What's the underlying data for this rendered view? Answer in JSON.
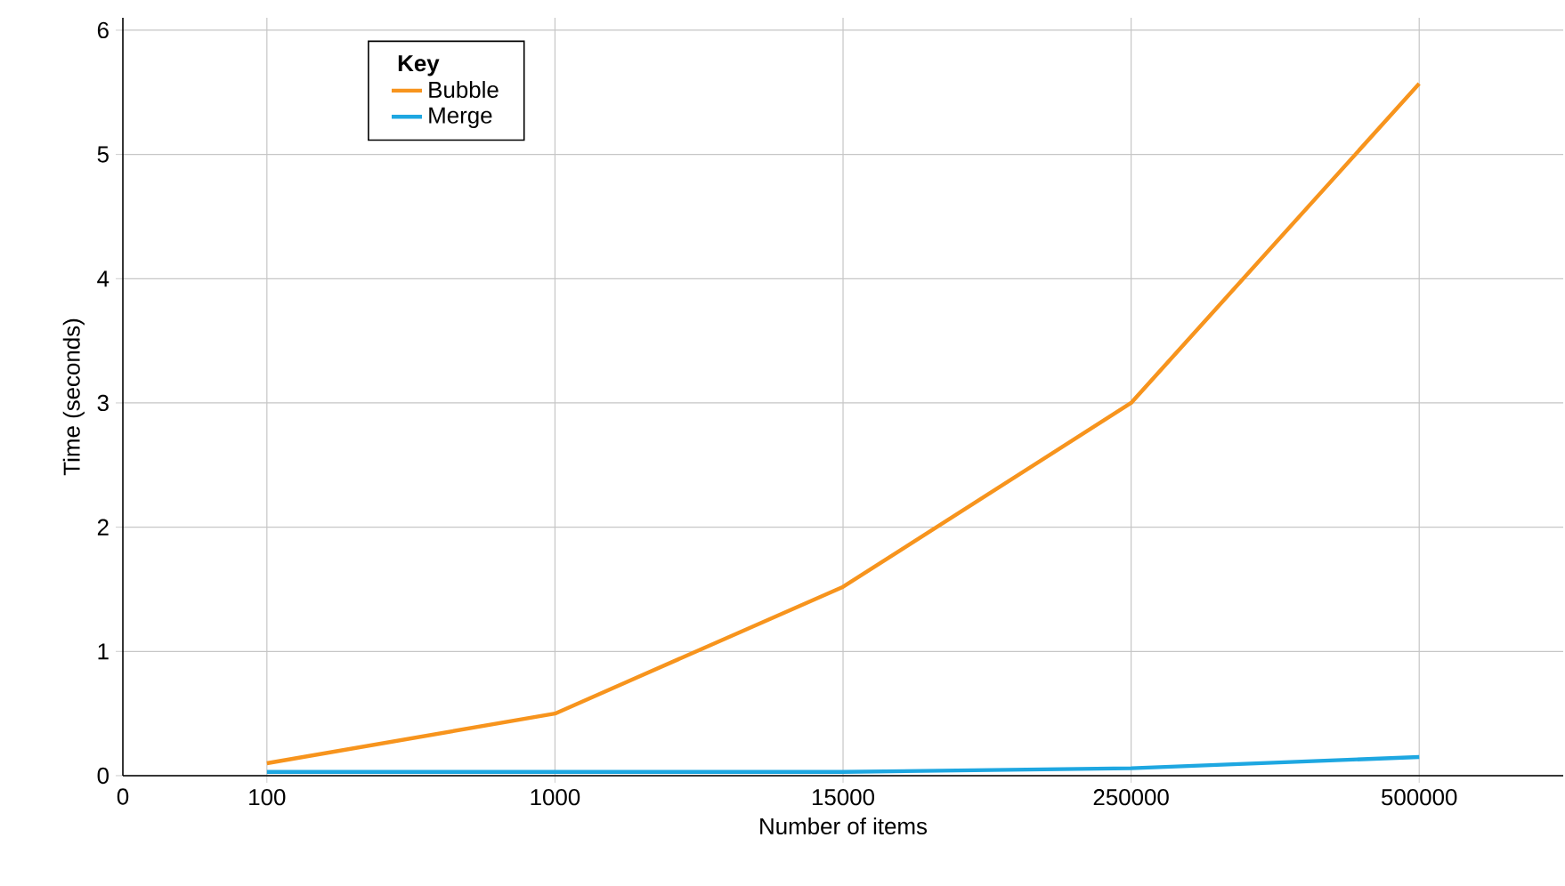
{
  "chart_data": {
    "type": "line",
    "xlabel": "Number of items",
    "ylabel": "Time (seconds)",
    "legend_title": "Key",
    "categories": [
      "100",
      "1000",
      "15000",
      "250000",
      "500000"
    ],
    "series": [
      {
        "name": "Bubble",
        "color": "#f7941d",
        "values": [
          0.1,
          0.5,
          1.52,
          3.0,
          5.57
        ]
      },
      {
        "name": "Merge",
        "color": "#1ea7e1",
        "values": [
          0.03,
          0.03,
          0.03,
          0.06,
          0.15
        ]
      }
    ],
    "ylim": [
      0,
      6.1
    ],
    "yticks": [
      0,
      1,
      2,
      3,
      4,
      5,
      6
    ],
    "annotations": [
      "0"
    ],
    "grid": true,
    "legend": "top left",
    "marker": "none",
    "line_style": "solid"
  }
}
